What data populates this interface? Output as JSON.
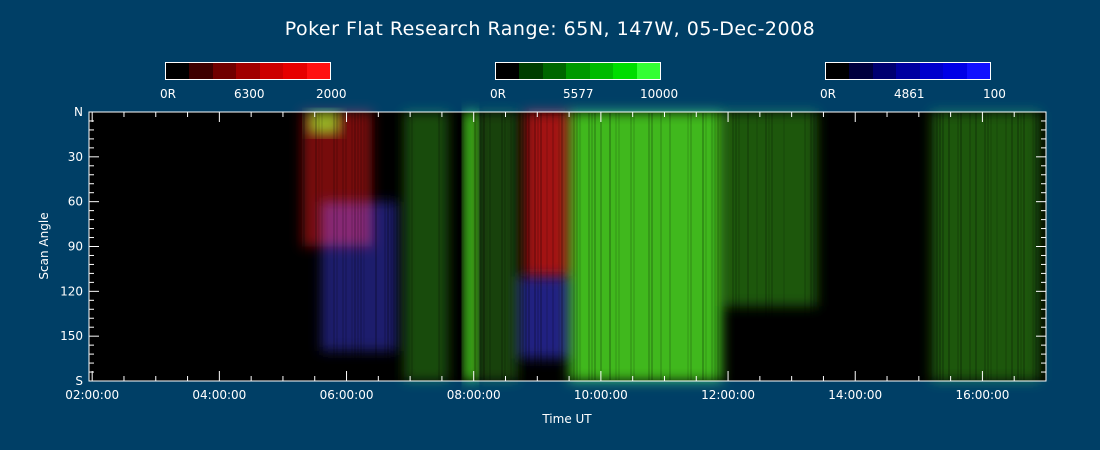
{
  "title": "Poker Flat Research Range: 65N, 147W, 05-Dec-2008",
  "colorbars": [
    {
      "name": "red",
      "min_label": "0R",
      "wavelength_label": "6300",
      "max_label": "2000",
      "colors": [
        "#000000",
        "#3d0000",
        "#700000",
        "#a00000",
        "#cc0000",
        "#e60000",
        "#ff1010"
      ]
    },
    {
      "name": "green",
      "min_label": "0R",
      "wavelength_label": "5577",
      "max_label": "10000",
      "colors": [
        "#000000",
        "#003d00",
        "#006600",
        "#009900",
        "#00bb00",
        "#00dd00",
        "#33ff33"
      ]
    },
    {
      "name": "blue",
      "min_label": "0R",
      "wavelength_label": "4861",
      "max_label": "100",
      "colors": [
        "#000000",
        "#00003d",
        "#000070",
        "#0000a0",
        "#0000cc",
        "#0000e6",
        "#1010ff"
      ]
    }
  ],
  "chart_data": {
    "type": "heatmap",
    "xlabel": "Time UT",
    "ylabel": "Scan Angle",
    "x_ticks": [
      "02:00:00",
      "04:00:00",
      "06:00:00",
      "08:00:00",
      "10:00:00",
      "12:00:00",
      "14:00:00",
      "16:00:00"
    ],
    "x_range_hours": [
      1.95,
      17.0
    ],
    "y_ticks": [
      "N",
      "30",
      "60",
      "90",
      "120",
      "150",
      "S"
    ],
    "y_range": [
      0,
      180
    ],
    "grid": false,
    "emission_regions": [
      {
        "channel": "red",
        "t_start": 5.3,
        "t_end": 6.4,
        "angle_start": 0,
        "angle_end": 90,
        "intensity": 0.55
      },
      {
        "channel": "blue",
        "t_start": 5.6,
        "t_end": 6.8,
        "angle_start": 60,
        "angle_end": 160,
        "intensity": 0.5
      },
      {
        "channel": "green",
        "t_start": 5.4,
        "t_end": 5.9,
        "angle_start": 0,
        "angle_end": 15,
        "intensity": 0.8
      },
      {
        "channel": "green",
        "t_start": 6.9,
        "t_end": 7.6,
        "angle_start": 0,
        "angle_end": 180,
        "intensity": 0.35
      },
      {
        "channel": "green",
        "t_start": 7.85,
        "t_end": 8.05,
        "angle_start": 0,
        "angle_end": 180,
        "intensity": 0.95
      },
      {
        "channel": "green",
        "t_start": 8.05,
        "t_end": 8.7,
        "angle_start": 0,
        "angle_end": 180,
        "intensity": 0.3
      },
      {
        "channel": "red",
        "t_start": 8.8,
        "t_end": 9.5,
        "angle_start": 0,
        "angle_end": 110,
        "intensity": 0.75
      },
      {
        "channel": "blue",
        "t_start": 8.7,
        "t_end": 9.5,
        "angle_start": 110,
        "angle_end": 165,
        "intensity": 0.6
      },
      {
        "channel": "green",
        "t_start": 9.5,
        "t_end": 11.9,
        "angle_start": 0,
        "angle_end": 180,
        "intensity": 0.85
      },
      {
        "channel": "green",
        "t_start": 11.9,
        "t_end": 13.4,
        "angle_start": 0,
        "angle_end": 130,
        "intensity": 0.4
      },
      {
        "channel": "green",
        "t_start": 15.2,
        "t_end": 16.9,
        "angle_start": 0,
        "angle_end": 180,
        "intensity": 0.4
      }
    ]
  }
}
